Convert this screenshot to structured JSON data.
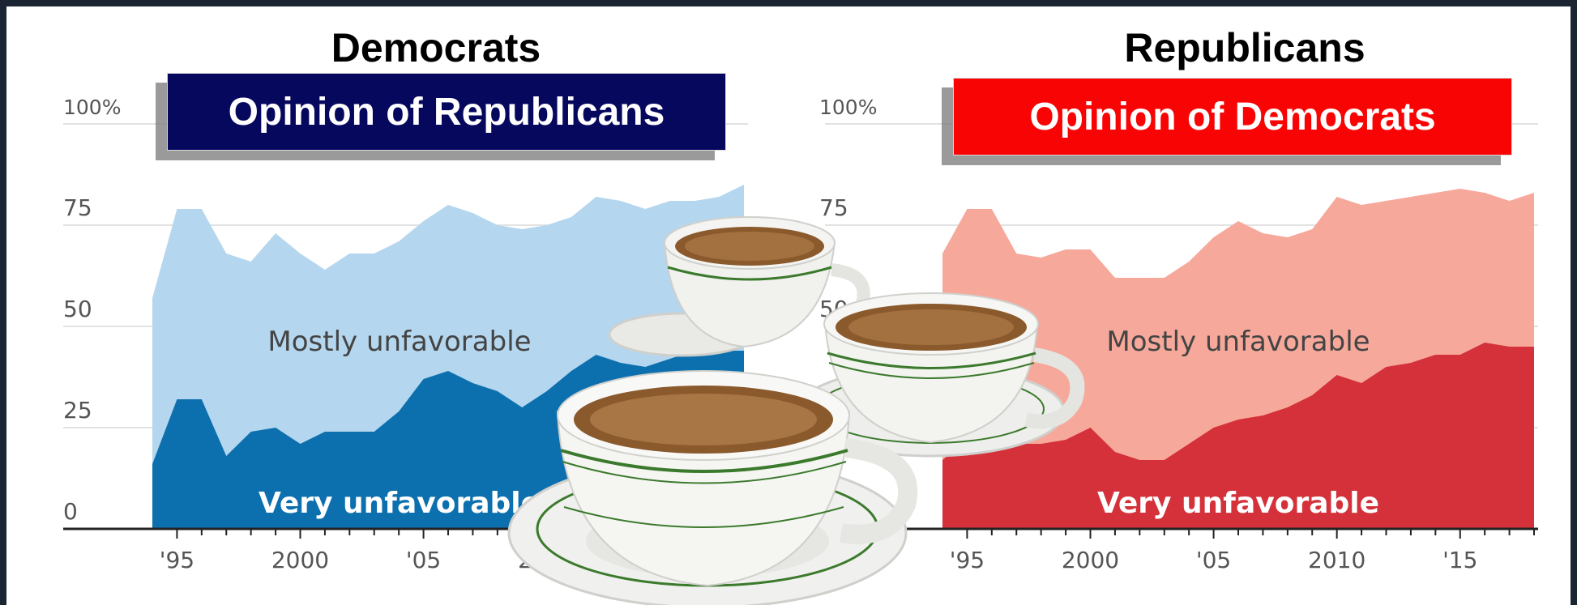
{
  "headers": {
    "left": "Democrats",
    "right": "Republicans"
  },
  "banners": {
    "left": {
      "text": "Opinion of Republicans",
      "color": "#06085e"
    },
    "right": {
      "text": "Opinion of Democrats",
      "color": "#f80404"
    }
  },
  "colors": {
    "dem_light": "#b5d6ef",
    "dem_dark": "#0d70ae",
    "rep_light": "#f6a99b",
    "rep_dark": "#d4313a"
  },
  "overlay": {
    "description_icon": "coffee-cups-icon"
  },
  "chart_data": [
    {
      "type": "area",
      "title": "Opinion of Republicans",
      "subtitle": "Democrats",
      "x": [
        1994,
        1995,
        1996,
        1997,
        1998,
        1999,
        2000,
        2001,
        2002,
        2003,
        2004,
        2005,
        2006,
        2007,
        2008,
        2009,
        2010,
        2011,
        2012,
        2013,
        2014,
        2015,
        2016,
        2017,
        2018
      ],
      "xlim": [
        1993.5,
        2018.5
      ],
      "ylim": [
        0,
        100
      ],
      "y_ticks": [
        0,
        25,
        50,
        75,
        100
      ],
      "y_tick_labels": [
        "0",
        "25",
        "50",
        "75",
        "100%"
      ],
      "x_ticks": [
        1995,
        2000,
        2005,
        2010,
        2015
      ],
      "x_tick_labels": [
        "'95",
        "2000",
        "'05",
        "2010",
        "'15"
      ],
      "series": [
        {
          "name": "Mostly unfavorable",
          "values": [
            57,
            79,
            79,
            68,
            66,
            73,
            68,
            64,
            68,
            68,
            71,
            76,
            80,
            78,
            75,
            74,
            75,
            77,
            82,
            81,
            79,
            81,
            81,
            82,
            85
          ]
        },
        {
          "name": "Very unfavorable",
          "values": [
            16,
            32,
            32,
            18,
            24,
            25,
            21,
            24,
            24,
            24,
            29,
            37,
            39,
            36,
            34,
            30,
            34,
            39,
            43,
            41,
            40,
            42,
            44,
            44,
            44
          ]
        }
      ],
      "annotations": [
        "Mostly unfavorable",
        "Very unfavorable"
      ]
    },
    {
      "type": "area",
      "title": "Opinion of Democrats",
      "subtitle": "Republicans",
      "x": [
        1994,
        1995,
        1996,
        1997,
        1998,
        1999,
        2000,
        2001,
        2002,
        2003,
        2004,
        2005,
        2006,
        2007,
        2008,
        2009,
        2010,
        2011,
        2012,
        2013,
        2014,
        2015,
        2016,
        2017,
        2018
      ],
      "xlim": [
        1993.5,
        2018.5
      ],
      "ylim": [
        0,
        100
      ],
      "y_ticks": [
        0,
        25,
        50,
        75,
        100
      ],
      "y_tick_labels": [
        "0",
        "25",
        "50",
        "75",
        "100%"
      ],
      "x_ticks": [
        1995,
        2000,
        2005,
        2010,
        2015
      ],
      "x_tick_labels": [
        "'95",
        "2000",
        "'05",
        "2010",
        "'15"
      ],
      "series": [
        {
          "name": "Mostly unfavorable",
          "values": [
            68,
            79,
            79,
            68,
            67,
            69,
            69,
            62,
            62,
            62,
            66,
            72,
            76,
            73,
            72,
            74,
            82,
            80,
            81,
            82,
            83,
            84,
            83,
            81,
            83
          ]
        },
        {
          "name": "Very unfavorable",
          "values": [
            17,
            22,
            22,
            21,
            21,
            22,
            25,
            19,
            17,
            17,
            21,
            25,
            27,
            28,
            30,
            33,
            38,
            36,
            40,
            41,
            43,
            43,
            46,
            45,
            45
          ]
        }
      ],
      "annotations": [
        "Mostly unfavorable",
        "Very unfavorable"
      ]
    }
  ]
}
